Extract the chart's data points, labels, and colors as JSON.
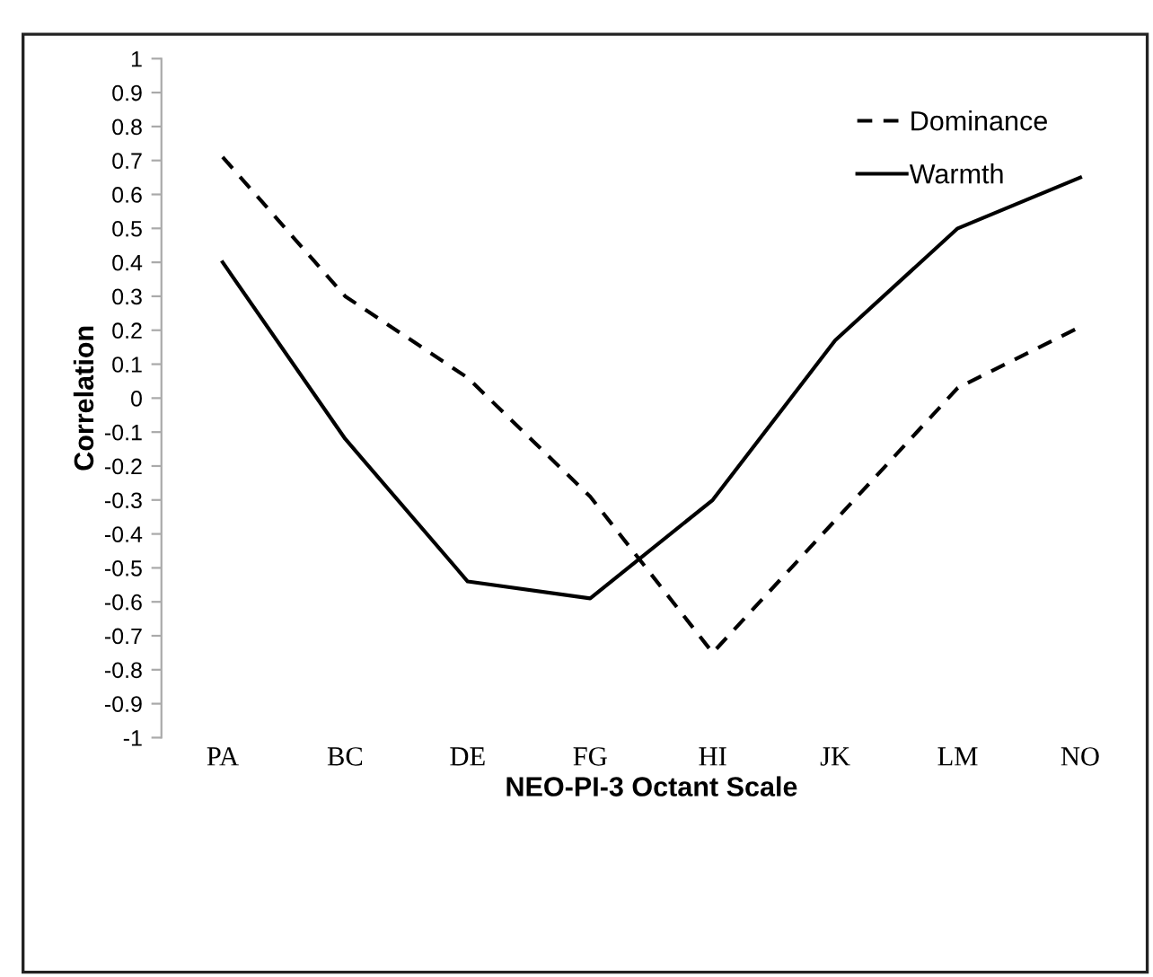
{
  "chart_data": {
    "type": "line",
    "xlabel": "NEO-PI-3 Octant Scale",
    "ylabel": "Correlation",
    "categories": [
      "PA",
      "BC",
      "DE",
      "FG",
      "HI",
      "JK",
      "LM",
      "NO"
    ],
    "series": [
      {
        "name": "Dominance",
        "color": "#000000",
        "line_style": "dashed",
        "values": [
          0.71,
          0.3,
          0.06,
          -0.29,
          -0.75,
          -0.36,
          0.03,
          0.21
        ]
      },
      {
        "name": "Warmth",
        "color": "#000000",
        "line_style": "solid",
        "values": [
          0.4,
          -0.12,
          -0.54,
          -0.59,
          -0.3,
          0.17,
          0.5,
          0.65
        ]
      }
    ],
    "ylim": [
      -1,
      1
    ],
    "yticks": [
      -1,
      -0.9,
      -0.8,
      -0.7,
      -0.6,
      -0.5,
      -0.4,
      -0.3,
      -0.2,
      -0.1,
      0,
      0.1,
      0.2,
      0.3,
      0.4,
      0.5,
      0.6,
      0.7,
      0.8,
      0.9,
      1
    ],
    "grid": false,
    "legend": "top right",
    "marker": "none"
  }
}
